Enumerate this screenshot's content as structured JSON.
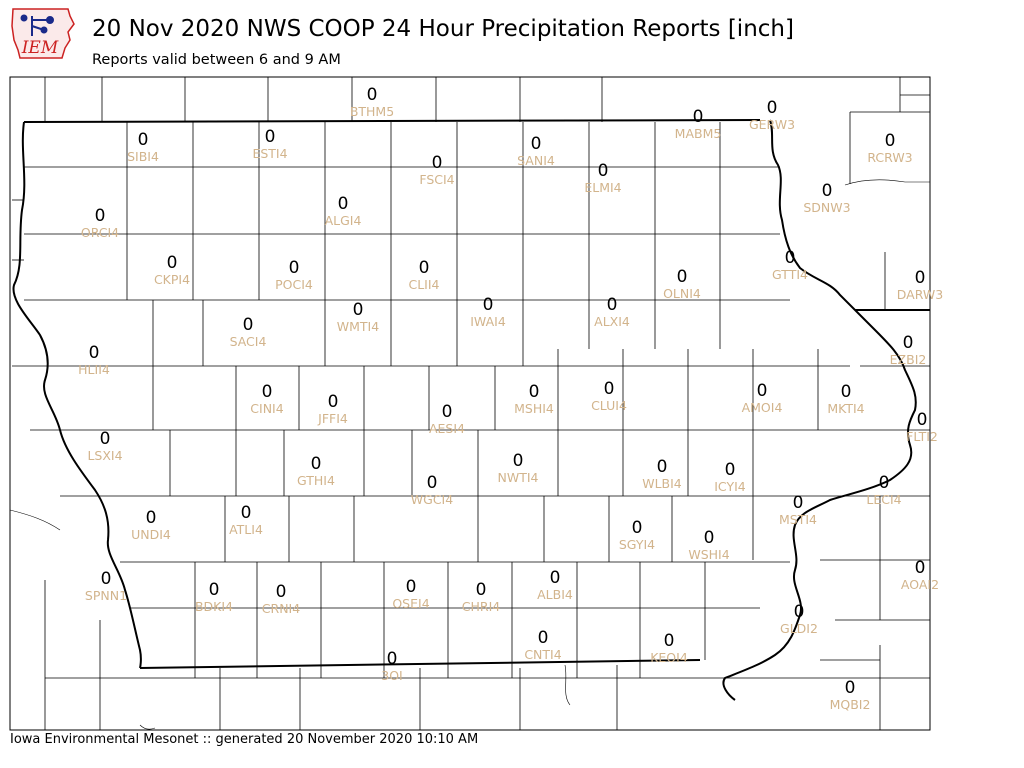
{
  "header": {
    "logo_text": "IEM",
    "title": "20 Nov 2020 NWS COOP 24 Hour Precipitation Reports [inch]",
    "subtitle": "Reports valid between 6 and 9 AM"
  },
  "footer": {
    "credit": "Iowa Environmental Mesonet :: generated 20 November 2020 10:10 AM"
  },
  "colors": {
    "value_text": "#000000",
    "station_text": "#d2b48c",
    "county_lines": "#000000",
    "logo_red": "#cc2222",
    "logo_blue": "#1a2a8a"
  },
  "stations": [
    {
      "id": "BTHM5",
      "value": "0"
    },
    {
      "id": "MABM5",
      "value": "0"
    },
    {
      "id": "GERW3",
      "value": "0"
    },
    {
      "id": "SIBI4",
      "value": "0"
    },
    {
      "id": "ESTI4",
      "value": "0"
    },
    {
      "id": "SANI4",
      "value": "0"
    },
    {
      "id": "FSCI4",
      "value": "0"
    },
    {
      "id": "ELMI4",
      "value": "0"
    },
    {
      "id": "RCRW3",
      "value": "0"
    },
    {
      "id": "SDNW3",
      "value": "0"
    },
    {
      "id": "ORCI4",
      "value": "0"
    },
    {
      "id": "ALGI4",
      "value": "0"
    },
    {
      "id": "CKPI4",
      "value": "0"
    },
    {
      "id": "POCI4",
      "value": "0"
    },
    {
      "id": "CLII4",
      "value": "0"
    },
    {
      "id": "GTTI4",
      "value": "0"
    },
    {
      "id": "OLNI4",
      "value": "0"
    },
    {
      "id": "DARW3",
      "value": "0"
    },
    {
      "id": "IWAI4",
      "value": "0"
    },
    {
      "id": "ALXI4",
      "value": "0"
    },
    {
      "id": "WMTI4",
      "value": "0"
    },
    {
      "id": "SACI4",
      "value": "0"
    },
    {
      "id": "EZBI2",
      "value": "0"
    },
    {
      "id": "HLII4",
      "value": "0"
    },
    {
      "id": "CLUI4",
      "value": "0"
    },
    {
      "id": "AMOI4",
      "value": "0"
    },
    {
      "id": "MKTI4",
      "value": "0"
    },
    {
      "id": "CINI4",
      "value": "0"
    },
    {
      "id": "JFFI4",
      "value": "0"
    },
    {
      "id": "MSHI4",
      "value": "0"
    },
    {
      "id": "AESI4",
      "value": "0"
    },
    {
      "id": "FLTI2",
      "value": "0"
    },
    {
      "id": "LSXI4",
      "value": "0"
    },
    {
      "id": "NWTI4",
      "value": "0"
    },
    {
      "id": "GTHI4",
      "value": "0"
    },
    {
      "id": "WLBI4",
      "value": "0"
    },
    {
      "id": "ICYI4",
      "value": "0"
    },
    {
      "id": "WGCI4",
      "value": "0"
    },
    {
      "id": "LECI4",
      "value": "0"
    },
    {
      "id": "MSTI4",
      "value": "0"
    },
    {
      "id": "ATLI4",
      "value": "0"
    },
    {
      "id": "UNDI4",
      "value": "0"
    },
    {
      "id": "SGYI4",
      "value": "0"
    },
    {
      "id": "WSHI4",
      "value": "0"
    },
    {
      "id": "AOAI2",
      "value": "0"
    },
    {
      "id": "SPNN1",
      "value": "0"
    },
    {
      "id": "BDKI4",
      "value": "0"
    },
    {
      "id": "CRNI4",
      "value": "0"
    },
    {
      "id": "OSEI4",
      "value": "0"
    },
    {
      "id": "CHRI4",
      "value": "0"
    },
    {
      "id": "ALBI4",
      "value": "0"
    },
    {
      "id": "GLDI2",
      "value": "0"
    },
    {
      "id": "CNTI4",
      "value": "0"
    },
    {
      "id": "KEOI4",
      "value": "0"
    },
    {
      "id": "3OI",
      "value": "0"
    },
    {
      "id": "MQBI2",
      "value": "0"
    }
  ]
}
